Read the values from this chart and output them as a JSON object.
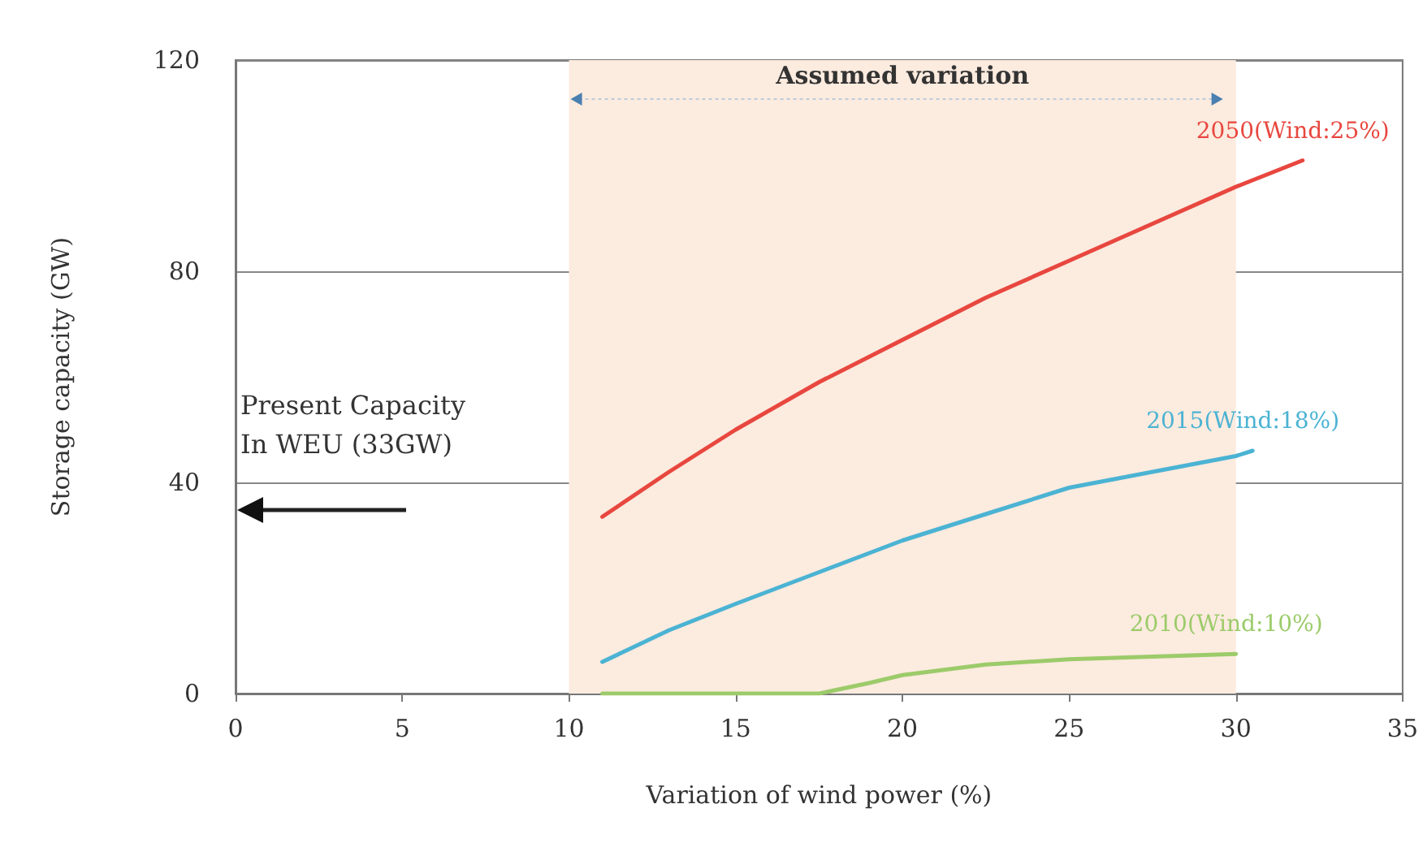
{
  "chart_data": {
    "type": "line",
    "xlabel": "Variation of wind power (%)",
    "ylabel": "Storage capacity (GW)",
    "xlim": [
      0,
      35
    ],
    "xticks": [
      0,
      5,
      10,
      15,
      20,
      25,
      30,
      35
    ],
    "ylim": [
      0,
      120
    ],
    "yticks": [
      0,
      40,
      80,
      120
    ],
    "grid": "y",
    "marker": "none",
    "line_style": "solid",
    "series": [
      {
        "name": "2050(Wind:25%)",
        "color": "#e8473f",
        "x": [
          11,
          13,
          15,
          17.5,
          20,
          22.5,
          25,
          27.5,
          30,
          32
        ],
        "values": [
          33.5,
          42,
          50,
          59,
          67,
          75,
          82,
          89,
          96,
          101
        ]
      },
      {
        "name": "2015(Wind:18%)",
        "color": "#4bb3d3",
        "x": [
          11,
          13,
          15,
          17.5,
          20,
          22.5,
          25,
          27.5,
          30,
          30.5
        ],
        "values": [
          6,
          12,
          17,
          23,
          29,
          34,
          39,
          42,
          45,
          46
        ]
      },
      {
        "name": "2010(Wind:10%)",
        "color": "#9ccb6a",
        "x": [
          11,
          15,
          17.5,
          19,
          20,
          22.5,
          25,
          27.5,
          30
        ],
        "values": [
          0,
          0,
          0,
          2,
          3.5,
          5.5,
          6.5,
          7,
          7.5
        ]
      }
    ],
    "bands": [
      {
        "axis": "x",
        "from": 10,
        "to": 30,
        "label": "Assumed variation",
        "color": "#fcebdf"
      }
    ],
    "annotations": [
      "Present Capacity\nIn WEU (33GW)"
    ]
  }
}
